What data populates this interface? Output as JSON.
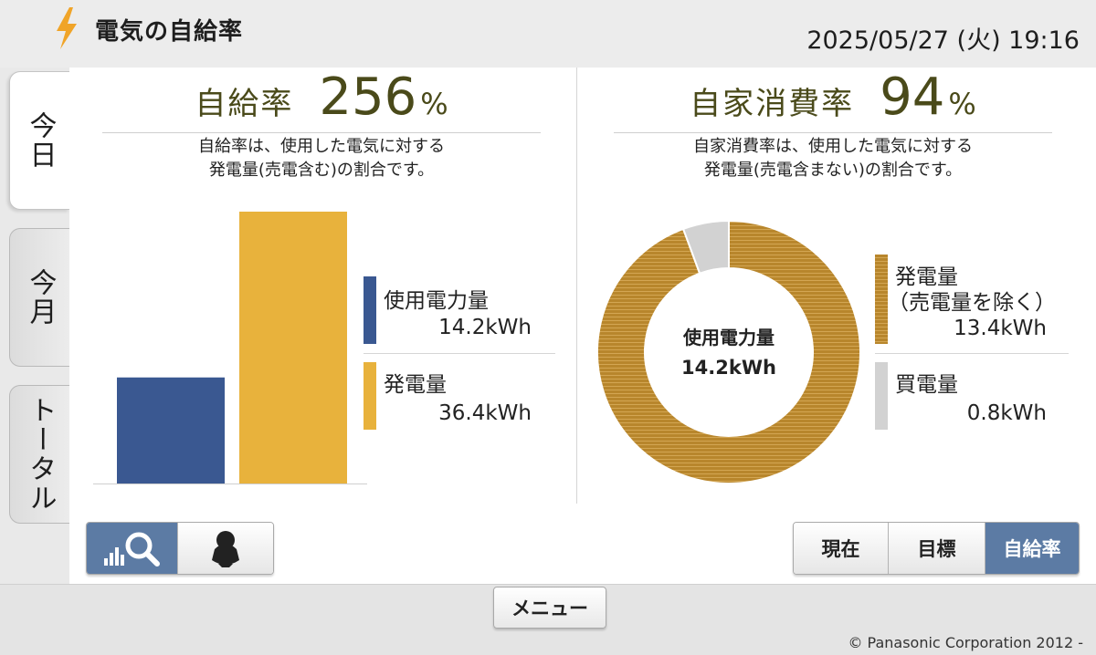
{
  "header": {
    "title": "電気の自給率",
    "datetime": "2025/05/27 (火) 19:16",
    "icon": "lightning-bolt-icon"
  },
  "tabs": [
    {
      "label": "今日",
      "active": true
    },
    {
      "label": "今月",
      "active": false
    },
    {
      "label": "トータル",
      "active": false
    }
  ],
  "self_sufficiency": {
    "label": "自給率",
    "value": "256",
    "unit": "%",
    "desc_line1": "自給率は、使用した電気に対する",
    "desc_line2": "発電量(売電含む)の割合です。",
    "legend": [
      {
        "label": "使用電力量",
        "value": "14.2kWh",
        "color": "#3a5891"
      },
      {
        "label": "発電量",
        "value": "36.4kWh",
        "color": "#e8b23c"
      }
    ]
  },
  "self_consumption": {
    "label": "自家消費率",
    "value": "94",
    "unit": "%",
    "desc_line1": "自家消費率は、使用した電気に対する",
    "desc_line2": "発電量(売電含まない)の割合です。",
    "center_label": "使用電力量",
    "center_value": "14.2kWh",
    "legend": [
      {
        "label": "発電量",
        "sublabel": "（売電量を除く）",
        "value": "13.4kWh",
        "color": "#b8862c"
      },
      {
        "label": "買電量",
        "value": "0.8kWh",
        "color": "#d2d2d2"
      }
    ]
  },
  "chart_data": [
    {
      "type": "bar",
      "categories": [
        "使用電力量",
        "発電量"
      ],
      "values": [
        14.2,
        36.4
      ],
      "title": "",
      "xlabel": "",
      "ylabel": "",
      "ylim": [
        0,
        36.4
      ],
      "colors": [
        "#3a5891",
        "#e8b23c"
      ]
    },
    {
      "type": "pie",
      "categories": [
        "発電量（売電量を除く）",
        "買電量"
      ],
      "values": [
        13.4,
        0.8
      ],
      "donut": true,
      "colors": [
        "#b8862c",
        "#d2d2d2"
      ]
    }
  ],
  "view_buttons": [
    {
      "name": "graph-search-icon",
      "selected": true
    },
    {
      "name": "penguin-icon",
      "selected": false
    }
  ],
  "mode_buttons": [
    {
      "label": "現在",
      "selected": false
    },
    {
      "label": "目標",
      "selected": false
    },
    {
      "label": "自給率",
      "selected": true
    }
  ],
  "footer": {
    "menu_label": "メニュー",
    "copyright": "© Panasonic Corporation 2012 -"
  }
}
